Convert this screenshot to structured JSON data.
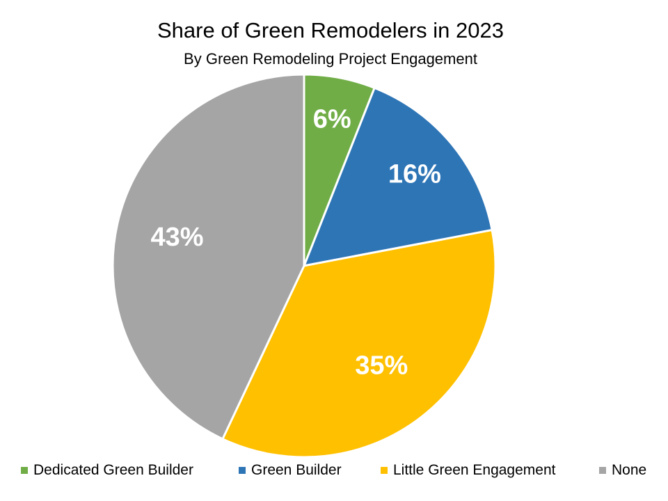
{
  "chart_data": {
    "type": "pie",
    "title": "Share of Green Remodelers in 2023",
    "subtitle": "By Green Remodeling Project Engagement",
    "legend_position": "bottom",
    "slices": [
      {
        "label": "Dedicated Green Builder",
        "value": 6,
        "display": "6%",
        "color": "#70AD47"
      },
      {
        "label": "Green Builder",
        "value": 16,
        "display": "16%",
        "color": "#2E75B6"
      },
      {
        "label": "Little Green Engagement",
        "value": 35,
        "display": "35%",
        "color": "#FFC000"
      },
      {
        "label": "None",
        "value": 43,
        "display": "43%",
        "color": "#A5A5A5"
      }
    ]
  }
}
